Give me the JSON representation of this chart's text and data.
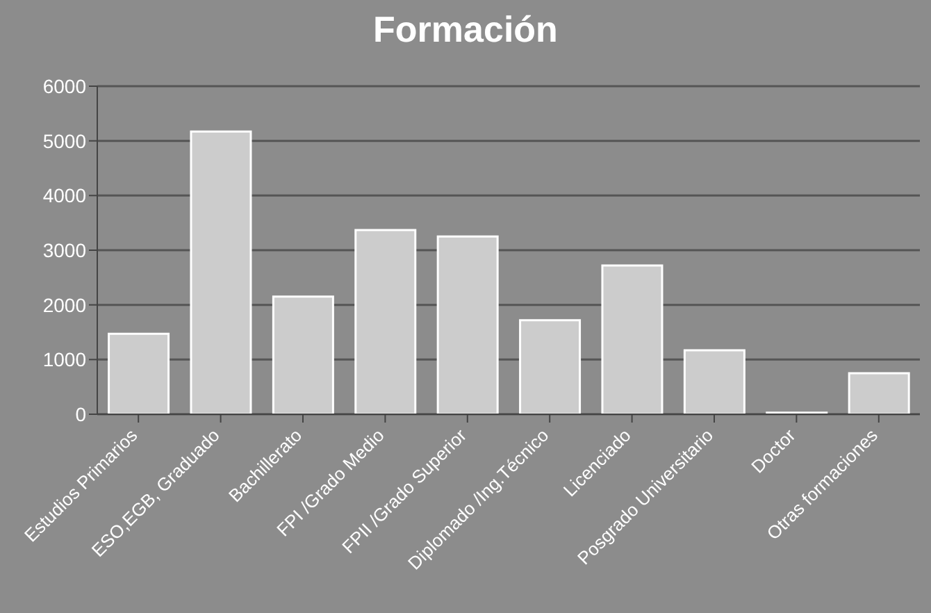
{
  "chart_data": {
    "type": "bar",
    "title": "Formación",
    "categories": [
      "Estudios Primarios",
      "ESO,EGB, Graduado",
      "Bachillerato",
      "FPI /Grado Medio",
      "FPII /Grado Superior",
      "Diplomado /Ing.Técnico",
      "Licenciado",
      "Posgrado Universitario",
      "Doctor",
      "Otras formaciones"
    ],
    "values": [
      1470,
      5170,
      2150,
      3370,
      3250,
      1720,
      2720,
      1170,
      30,
      750
    ],
    "color": "#cccccc",
    "ylim": [
      0,
      6000
    ],
    "yticks": [
      0,
      1000,
      2000,
      3000,
      4000,
      5000,
      6000
    ],
    "grid": "y"
  }
}
